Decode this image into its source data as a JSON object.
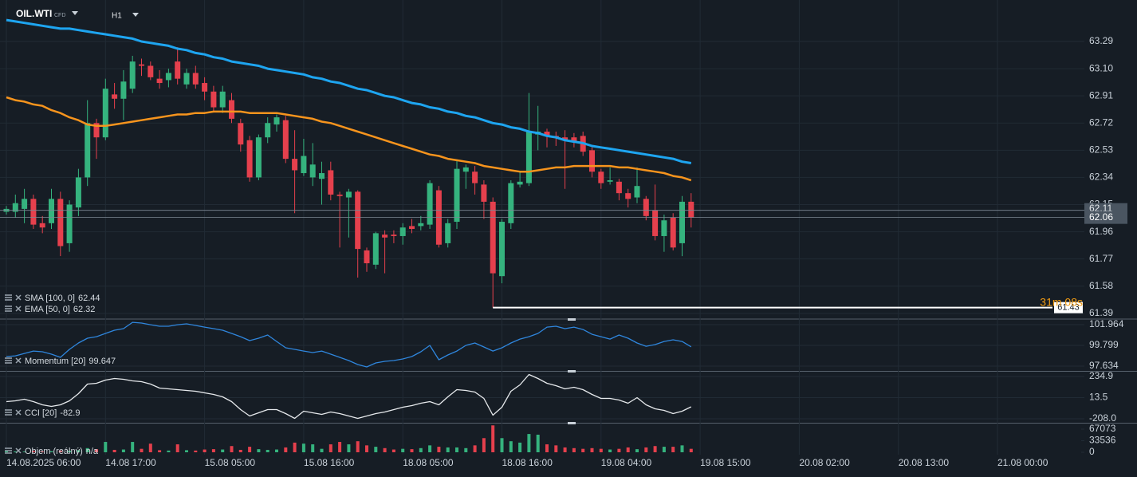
{
  "header": {
    "symbol": "OIL.WTI",
    "instrument_type": "CFD",
    "timeframe": "H1"
  },
  "chart_data": [
    {
      "type": "candlestick",
      "categories": [
        "14.08.2025 06:00",
        null,
        null,
        null,
        null,
        null,
        null,
        null,
        null,
        null,
        null,
        "14.08 17:00",
        null,
        null,
        null,
        null,
        null,
        null,
        null,
        null,
        null,
        null,
        "15.08 05:00",
        null,
        null,
        null,
        null,
        null,
        null,
        null,
        null,
        null,
        null,
        "15.08 16:00",
        null,
        null,
        null,
        null,
        null,
        null,
        null,
        null,
        null,
        null,
        "18.08 05:00",
        null,
        null,
        null,
        null,
        null,
        null,
        null,
        null,
        null,
        null,
        "18.08 16:00",
        null,
        null,
        null,
        null,
        null,
        null,
        null,
        null,
        null,
        null,
        "19.08 04:00",
        null,
        null,
        null,
        null,
        null,
        null,
        null,
        null,
        null,
        null
      ],
      "future_categories": [
        "19.08 15:00",
        "20.08 02:00",
        "20.08 13:00",
        "21.08 00:00"
      ],
      "open": [
        62.1,
        62.1,
        62.12,
        62.19,
        62.02,
        62.02,
        62.19,
        61.88,
        62.13,
        62.34,
        62.72,
        62.62,
        62.92,
        62.89,
        62.96,
        63.13,
        63.12,
        63.03,
        63.02,
        63.15,
        62.99,
        63.07,
        63.0,
        62.94,
        62.83,
        62.88,
        62.72,
        62.6,
        62.34,
        62.62,
        62.71,
        62.74,
        62.47,
        62.37,
        62.34,
        62.33,
        62.39,
        62.22,
        62.2,
        62.24,
        61.83,
        61.73,
        61.94,
        61.94,
        61.93,
        62.0,
        62.0,
        62.01,
        62.25,
        61.88,
        62.03,
        62.38,
        62.38,
        62.29,
        62.17,
        61.65,
        62.02,
        62.29,
        62.3,
        62.64,
        62.66,
        62.63,
        62.62,
        62.62,
        62.63,
        62.53,
        62.38,
        62.31,
        62.31,
        62.23,
        62.2,
        62.19,
        62.11,
        61.93,
        62.06,
        61.88,
        62.17
      ],
      "high": [
        62.14,
        62.22,
        62.26,
        62.22,
        62.07,
        62.26,
        62.24,
        62.18,
        62.4,
        62.88,
        62.75,
        63.03,
        63.0,
        63.09,
        63.19,
        63.17,
        63.15,
        63.09,
        63.1,
        63.25,
        63.1,
        63.12,
        63.04,
        62.98,
        62.98,
        62.93,
        62.75,
        62.63,
        62.64,
        62.76,
        62.78,
        62.77,
        62.67,
        62.61,
        62.58,
        62.45,
        62.45,
        62.24,
        62.26,
        62.25,
        61.85,
        61.96,
        61.97,
        61.97,
        62.02,
        62.05,
        62.07,
        62.32,
        62.28,
        62.05,
        62.46,
        62.43,
        62.42,
        62.32,
        62.2,
        62.05,
        62.32,
        62.38,
        62.93,
        62.84,
        62.68,
        62.66,
        62.67,
        62.65,
        62.66,
        62.55,
        62.4,
        62.41,
        62.33,
        62.26,
        62.41,
        62.21,
        62.29,
        62.08,
        62.09,
        62.21,
        62.23
      ],
      "low": [
        62.08,
        62.06,
        62.02,
        61.98,
        61.95,
        61.98,
        61.79,
        61.82,
        62.07,
        62.28,
        62.47,
        62.6,
        62.82,
        62.74,
        62.93,
        63.05,
        63.02,
        62.96,
        62.97,
        62.99,
        62.96,
        62.96,
        62.88,
        62.8,
        62.79,
        62.72,
        62.52,
        62.31,
        62.32,
        62.58,
        62.66,
        62.44,
        62.09,
        62.35,
        62.28,
        62.15,
        62.18,
        61.85,
        61.92,
        61.64,
        61.68,
        61.7,
        61.67,
        61.88,
        61.87,
        61.95,
        61.97,
        61.98,
        61.85,
        61.85,
        61.98,
        62.26,
        62.22,
        62.05,
        61.43,
        61.6,
        61.98,
        62.27,
        62.28,
        62.53,
        62.55,
        62.56,
        62.26,
        62.55,
        62.49,
        62.34,
        62.26,
        62.29,
        62.18,
        62.13,
        62.16,
        62.04,
        61.9,
        61.82,
        61.83,
        61.79,
        61.99
      ],
      "close": [
        62.12,
        62.16,
        62.19,
        62.01,
        61.99,
        62.19,
        61.86,
        62.15,
        62.34,
        62.72,
        62.62,
        62.96,
        62.89,
        63.01,
        63.15,
        63.12,
        63.04,
        63.0,
        63.07,
        63.03,
        63.07,
        62.99,
        62.94,
        62.83,
        62.94,
        62.75,
        62.57,
        62.34,
        62.62,
        62.72,
        62.76,
        62.47,
        62.39,
        62.49,
        62.43,
        62.37,
        62.22,
        62.21,
        62.24,
        61.84,
        61.74,
        61.95,
        61.92,
        61.93,
        61.99,
        61.98,
        62.02,
        62.3,
        61.87,
        62.02,
        62.4,
        62.41,
        62.3,
        62.17,
        61.67,
        62.03,
        62.3,
        62.31,
        62.66,
        62.66,
        62.63,
        62.62,
        62.6,
        62.59,
        62.52,
        62.38,
        62.3,
        62.32,
        62.23,
        62.19,
        62.28,
        62.07,
        61.93,
        62.04,
        61.85,
        62.17,
        62.06
      ],
      "up_color": "#35b37e",
      "down_color": "#e5404d",
      "overlays": [
        {
          "name": "SMA [100, 0]",
          "color": "#1ea5f0",
          "values": [
            63.44,
            63.43,
            63.42,
            63.41,
            63.4,
            63.39,
            63.38,
            63.38,
            63.37,
            63.36,
            63.35,
            63.34,
            63.33,
            63.32,
            63.31,
            63.29,
            63.28,
            63.27,
            63.26,
            63.24,
            63.23,
            63.21,
            63.2,
            63.18,
            63.17,
            63.15,
            63.14,
            63.13,
            63.12,
            63.1,
            63.09,
            63.08,
            63.07,
            63.06,
            63.04,
            63.03,
            63.01,
            63.0,
            62.98,
            62.96,
            62.95,
            62.93,
            62.91,
            62.9,
            62.88,
            62.86,
            62.85,
            62.83,
            62.82,
            62.8,
            62.79,
            62.77,
            62.76,
            62.74,
            62.72,
            62.71,
            62.69,
            62.68,
            62.66,
            62.65,
            62.63,
            62.62,
            62.6,
            62.59,
            62.58,
            62.56,
            62.55,
            62.54,
            62.53,
            62.52,
            62.51,
            62.5,
            62.49,
            62.48,
            62.47,
            62.45,
            62.44
          ]
        },
        {
          "name": "EMA [50, 0]",
          "color": "#f7941d",
          "values": [
            62.9,
            62.88,
            62.87,
            62.85,
            62.84,
            62.81,
            62.79,
            62.76,
            62.74,
            62.71,
            62.7,
            62.7,
            62.71,
            62.72,
            62.73,
            62.74,
            62.75,
            62.76,
            62.77,
            62.78,
            62.78,
            62.79,
            62.79,
            62.8,
            62.8,
            62.8,
            62.8,
            62.79,
            62.79,
            62.79,
            62.79,
            62.78,
            62.77,
            62.76,
            62.75,
            62.73,
            62.72,
            62.7,
            62.68,
            62.66,
            62.64,
            62.62,
            62.6,
            62.58,
            62.56,
            62.54,
            62.52,
            62.5,
            62.49,
            62.47,
            62.46,
            62.45,
            62.44,
            62.42,
            62.41,
            62.4,
            62.39,
            62.38,
            62.38,
            62.39,
            62.4,
            62.41,
            62.41,
            62.42,
            62.42,
            62.42,
            62.42,
            62.42,
            62.41,
            62.41,
            62.4,
            62.39,
            62.38,
            62.37,
            62.35,
            62.34,
            62.32
          ]
        }
      ],
      "ask": 62.11,
      "countdown": "31m 08s",
      "ylim": [
        61.35,
        63.58
      ],
      "yticks": [
        63.29,
        {
          "value": 63.1,
          "label": "63.10"
        },
        62.91,
        62.72,
        62.53,
        62.34,
        62.15,
        61.96,
        61.77,
        61.58,
        61.39
      ],
      "grid": true
    },
    {
      "type": "line",
      "name": "Momentum [20]",
      "color": "#2f86dd",
      "values": [
        98.63,
        98.71,
        98.96,
        99.21,
        99.13,
        98.88,
        98.55,
        99.38,
        100.05,
        100.55,
        100.71,
        101.05,
        101.38,
        101.55,
        102.21,
        102.13,
        101.96,
        101.8,
        101.8,
        101.96,
        102.05,
        101.88,
        101.71,
        101.55,
        101.38,
        101.05,
        100.71,
        100.3,
        100.55,
        100.88,
        100.21,
        99.55,
        99.38,
        99.21,
        99.05,
        99.21,
        98.88,
        98.55,
        98.21,
        97.8,
        97.55,
        97.96,
        98.13,
        98.21,
        98.38,
        98.63,
        99.13,
        99.8,
        98.3,
        98.8,
        99.21,
        99.8,
        100.05,
        99.63,
        99.21,
        99.55,
        100.05,
        100.46,
        100.71,
        101.05,
        101.71,
        101.8,
        101.55,
        101.71,
        101.46,
        100.96,
        100.71,
        100.46,
        100.88,
        100.55,
        100.05,
        99.71,
        99.88,
        100.21,
        100.38,
        100.21,
        99.647
      ],
      "ylim": [
        97.13,
        102.55
      ],
      "yticks": [
        101.964,
        99.799,
        97.634
      ],
      "grid": true
    },
    {
      "type": "line",
      "name": "CCI [20]",
      "color": "#e6e9ec",
      "values": [
        -28.3,
        -19.9,
        -3.2,
        -28.3,
        -61.7,
        -78.4,
        -61.7,
        -19.9,
        55.3,
        155.5,
        163.9,
        197.3,
        214.0,
        205.6,
        188.9,
        180.6,
        155.5,
        113.7,
        105.4,
        97.0,
        88.7,
        80.3,
        63.6,
        46.9,
        21.9,
        -28.3,
        -111.8,
        -178.6,
        -145.2,
        -111.8,
        -111.8,
        -153.6,
        -203.7,
        -128.5,
        -145.2,
        -161.9,
        -136.9,
        -153.6,
        -178.6,
        -203.7,
        -178.6,
        -153.6,
        -136.9,
        -111.8,
        -86.7,
        -70.0,
        -44.9,
        -28.3,
        -61.7,
        21.9,
        97.0,
        88.7,
        72.0,
        5.1,
        -170.3,
        -86.7,
        80.3,
        147.2,
        255.8,
        214.0,
        163.9,
        138.8,
        105.4,
        122.1,
        97.0,
        46.9,
        5.1,
        5.1,
        -11.6,
        -44.9,
        13.5,
        -61.7,
        -103.4,
        -120.1,
        -153.6,
        -128.5,
        -82.9
      ],
      "ylim": [
        -250,
        285
      ],
      "yticks": [
        234.9,
        13.5,
        {
          "value": -208,
          "label": "-208.0"
        }
      ],
      "grid": true
    },
    {
      "type": "bar",
      "name": "Objem (reálný)",
      "value_label": "n/a",
      "values": [
        3000,
        2500,
        2000,
        4000,
        2000,
        3000,
        5000,
        4000,
        6000,
        12000,
        9000,
        30000,
        7000,
        8000,
        30000,
        10000,
        25000,
        6000,
        5000,
        23000,
        6000,
        5000,
        8000,
        9000,
        8000,
        18000,
        7000,
        16000,
        9000,
        7000,
        8000,
        14000,
        28000,
        25000,
        23000,
        10000,
        23000,
        30000,
        23000,
        32000,
        20000,
        16000,
        12000,
        8000,
        10000,
        9000,
        12000,
        20000,
        16000,
        14000,
        14000,
        12000,
        20000,
        41000,
        78000,
        41000,
        32000,
        28000,
        53000,
        51000,
        23000,
        20000,
        14000,
        12000,
        10000,
        12000,
        10000,
        8000,
        10000,
        14000,
        9000,
        14000,
        18000,
        16000,
        16000,
        20000,
        10000
      ],
      "ylim": [
        0,
        83260
      ],
      "yticks": [
        67073,
        33536,
        0
      ],
      "grid": false
    }
  ]
}
